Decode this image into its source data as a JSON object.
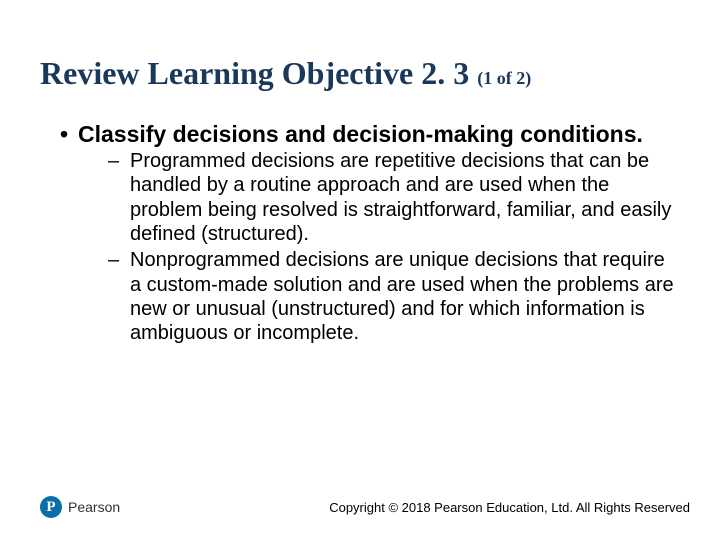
{
  "title": {
    "main": "Review Learning Objective 2. 3 ",
    "sub": "(1 of 2)",
    "color": "#1a385a",
    "font_family": "Times New Roman",
    "font_size_main": 32,
    "font_size_sub": 18
  },
  "body": {
    "main_bullet": "Classify decisions and decision-making conditions.",
    "main_font_size": 23,
    "main_font_weight": "bold",
    "sub_bullets": [
      "Programmed decisions are repetitive decisions that can be handled by a routine approach and are used when the problem being resolved is straightforward, familiar, and easily defined (structured).",
      "Nonprogrammed decisions are unique decisions that require a custom-made solution and are used when the problems are new or unusual (unstructured) and for which information is ambiguous or incomplete."
    ],
    "sub_font_size": 20,
    "sub_font_weight": "normal",
    "text_color": "#000000"
  },
  "footer": {
    "logo_letter": "P",
    "logo_text": "Pearson",
    "logo_bg": "#0a6ea8",
    "copyright": "Copyright © 2018 Pearson Education, Ltd. All Rights Reserved",
    "copyright_font_size": 13
  },
  "background_color": "#ffffff"
}
